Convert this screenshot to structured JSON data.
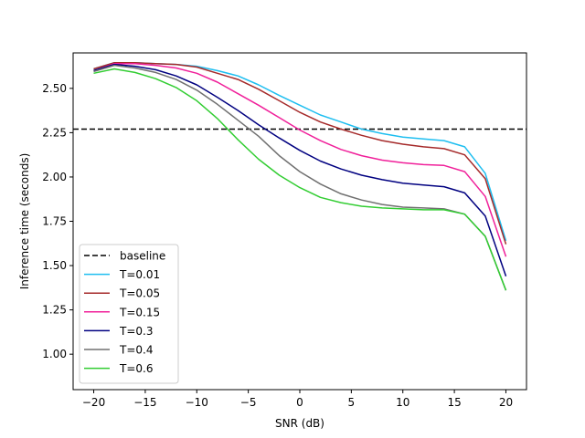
{
  "chart_data": {
    "type": "line",
    "xlabel": "SNR (dB)",
    "ylabel": "Inference time (seconds)",
    "xlim": [
      -22,
      22
    ],
    "ylim": [
      0.8,
      2.7
    ],
    "xticks": [
      -20,
      -15,
      -10,
      -5,
      0,
      5,
      10,
      15,
      20
    ],
    "xtick_labels": [
      "−20",
      "−15",
      "−10",
      "−5",
      "0",
      "5",
      "10",
      "15",
      "20"
    ],
    "yticks": [
      1.0,
      1.25,
      1.5,
      1.75,
      2.0,
      2.25,
      2.5
    ],
    "ytick_labels": [
      "1.00",
      "1.25",
      "1.50",
      "1.75",
      "2.00",
      "2.25",
      "2.50"
    ],
    "grid": false,
    "legend_position": "lower-left",
    "baseline": {
      "name": "baseline",
      "value": 2.27,
      "color": "#000000",
      "style": "dashed"
    },
    "x": [
      -20,
      -18,
      -16,
      -14,
      -12,
      -10,
      -8,
      -6,
      -4,
      -2,
      0,
      2,
      4,
      6,
      8,
      10,
      12,
      14,
      16,
      18,
      20
    ],
    "series": [
      {
        "name": "T=0.01",
        "color": "#1EBEF0",
        "values": [
          2.61,
          2.645,
          2.645,
          2.64,
          2.635,
          2.625,
          2.6,
          2.57,
          2.52,
          2.46,
          2.405,
          2.35,
          2.31,
          2.27,
          2.245,
          2.225,
          2.215,
          2.205,
          2.17,
          2.02,
          1.64
        ]
      },
      {
        "name": "T=0.05",
        "color": "#A52A2A",
        "values": [
          2.61,
          2.645,
          2.645,
          2.64,
          2.635,
          2.62,
          2.585,
          2.55,
          2.495,
          2.43,
          2.365,
          2.31,
          2.27,
          2.235,
          2.205,
          2.185,
          2.17,
          2.16,
          2.125,
          1.99,
          1.62
        ]
      },
      {
        "name": "T=0.15",
        "color": "#F0209A",
        "values": [
          2.6,
          2.64,
          2.64,
          2.63,
          2.615,
          2.585,
          2.535,
          2.47,
          2.405,
          2.335,
          2.265,
          2.205,
          2.155,
          2.12,
          2.095,
          2.08,
          2.07,
          2.065,
          2.03,
          1.89,
          1.55
        ]
      },
      {
        "name": "T=0.3",
        "color": "#000080",
        "values": [
          2.6,
          2.635,
          2.625,
          2.605,
          2.57,
          2.52,
          2.45,
          2.375,
          2.295,
          2.22,
          2.15,
          2.09,
          2.045,
          2.01,
          1.985,
          1.965,
          1.955,
          1.945,
          1.91,
          1.78,
          1.44
        ]
      },
      {
        "name": "T=0.4",
        "color": "#707070",
        "values": [
          2.595,
          2.63,
          2.615,
          2.59,
          2.55,
          2.49,
          2.41,
          2.32,
          2.23,
          2.12,
          2.03,
          1.96,
          1.905,
          1.87,
          1.845,
          1.83,
          1.825,
          1.82,
          1.79,
          1.665,
          1.36
        ]
      },
      {
        "name": "T=0.6",
        "color": "#32CD32",
        "values": [
          2.585,
          2.61,
          2.59,
          2.555,
          2.505,
          2.43,
          2.33,
          2.21,
          2.1,
          2.01,
          1.94,
          1.885,
          1.855,
          1.835,
          1.825,
          1.82,
          1.815,
          1.815,
          1.79,
          1.665,
          1.36
        ]
      }
    ]
  }
}
